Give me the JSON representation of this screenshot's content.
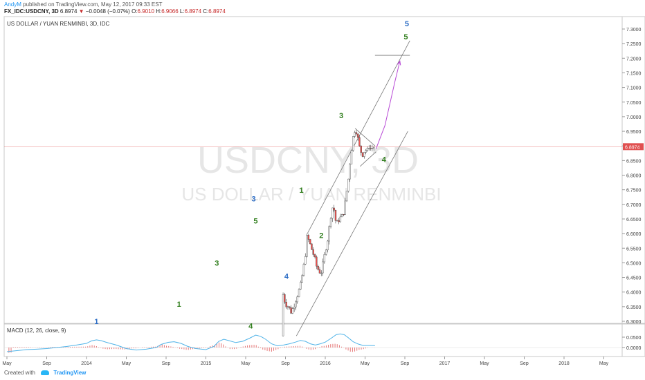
{
  "header": {
    "author": "AndyM",
    "published_text": "published on TradingView.com, May 12, 2017 09:33 EST",
    "symbol": "FX_IDC:USDCNY, 3D",
    "last": "6.8974",
    "change": "−0.0048 (−0.07%)",
    "o_label": "O:",
    "o": "6.9010",
    "h_label": "H:",
    "h": "6.9066",
    "l_label": "L:",
    "l": "6.8974",
    "c_label": "C:",
    "c": "6.8974"
  },
  "footer": {
    "created_with": "Created with",
    "brand": "TradingView"
  },
  "colors": {
    "up": "#26a69a",
    "down": "#ef5350",
    "candle_up_fill": "#ffffff",
    "candle_body": "#3c3c3c",
    "wave_green": "#2e7d1a",
    "wave_blue": "#2b6cc4",
    "projection": "#b84ad6",
    "macd_line": "#4fb3e8",
    "macd_hist": "#e57373",
    "price_line": "#e05050"
  },
  "chart_data": [
    {
      "type": "candlestick",
      "title": "US DOLLAR / YUAN RENMINBI, 3D, IDC",
      "watermark": "USDCNY, 3D",
      "watermark_sub": "US DOLLAR / YUAN RENMINBI",
      "x_ticks": [
        "May",
        "Sep",
        "2014",
        "May",
        "Sep",
        "2015",
        "May",
        "Sep",
        "2016",
        "May",
        "Sep",
        "2017",
        "May",
        "Sep",
        "2018",
        "May"
      ],
      "y_ticks": [
        "7.3000",
        "7.2500",
        "7.2000",
        "7.1500",
        "7.1000",
        "7.0500",
        "7.0000",
        "6.9500",
        "6.9000",
        "6.8500",
        "6.8000",
        "6.7500",
        "6.7000",
        "6.6500",
        "6.6000",
        "6.5500",
        "6.5000",
        "6.4500",
        "6.4000",
        "6.3500",
        "6.3000"
      ],
      "ylim": [
        6.29,
        7.32
      ],
      "last_price": 6.8974,
      "last_price_label": "6.8974",
      "price_path": [
        [
          27.6,
          6.25
        ],
        [
          27.7,
          6.4
        ],
        [
          27.85,
          6.38
        ],
        [
          28.0,
          6.36
        ],
        [
          28.3,
          6.35
        ],
        [
          28.6,
          6.33
        ],
        [
          28.9,
          6.36
        ],
        [
          29.2,
          6.39
        ],
        [
          29.5,
          6.42
        ],
        [
          29.8,
          6.48
        ],
        [
          30.0,
          6.53
        ],
        [
          30.1,
          6.59
        ],
        [
          30.3,
          6.58
        ],
        [
          30.6,
          6.55
        ],
        [
          30.9,
          6.52
        ],
        [
          31.1,
          6.49
        ],
        [
          31.4,
          6.47
        ],
        [
          31.6,
          6.47
        ],
        [
          31.8,
          6.5
        ],
        [
          32.0,
          6.54
        ],
        [
          32.3,
          6.59
        ],
        [
          32.5,
          6.65
        ],
        [
          32.7,
          6.69
        ],
        [
          32.9,
          6.68
        ],
        [
          33.1,
          6.63
        ],
        [
          33.4,
          6.65
        ],
        [
          33.7,
          6.66
        ],
        [
          33.9,
          6.68
        ],
        [
          34.1,
          6.73
        ],
        [
          34.3,
          6.78
        ],
        [
          34.5,
          6.85
        ],
        [
          34.7,
          6.91
        ],
        [
          34.9,
          6.95
        ],
        [
          35.05,
          6.96
        ],
        [
          35.2,
          6.94
        ],
        [
          35.4,
          6.9
        ],
        [
          35.6,
          6.88
        ],
        [
          35.8,
          6.87
        ],
        [
          36.0,
          6.89
        ],
        [
          36.2,
          6.88
        ],
        [
          36.4,
          6.9
        ],
        [
          36.6,
          6.89
        ],
        [
          36.8,
          6.895
        ],
        [
          37.0,
          6.8974
        ]
      ],
      "channel_upper": [
        [
          30.2,
          6.6
        ],
        [
          40.5,
          7.26
        ]
      ],
      "channel_lower": [
        [
          29.1,
          6.25
        ],
        [
          40.3,
          6.95
        ]
      ],
      "triangle_upper": [
        [
          35.0,
          6.96
        ],
        [
          37.0,
          6.9
        ]
      ],
      "triangle_lower": [
        [
          35.5,
          6.83
        ],
        [
          37.1,
          6.88
        ]
      ],
      "target_line": [
        [
          37.0,
          7.21
        ],
        [
          40.5,
          7.21
        ]
      ],
      "projection": [
        [
          37.1,
          6.89
        ],
        [
          38.0,
          6.97
        ],
        [
          39.0,
          7.12
        ],
        [
          39.5,
          7.19
        ]
      ],
      "wave_labels": [
        {
          "text": "1",
          "x": 9.0,
          "y": 6.29,
          "color": "blue"
        },
        {
          "text": "1",
          "x": 17.3,
          "y": 6.35,
          "color": "green"
        },
        {
          "text": "3",
          "x": 21.1,
          "y": 6.49,
          "color": "green"
        },
        {
          "text": "4",
          "x": 24.5,
          "y": 6.275,
          "color": "green"
        },
        {
          "text": "3",
          "x": 24.8,
          "y": 6.71,
          "color": "blue"
        },
        {
          "text": "5",
          "x": 25.0,
          "y": 6.635,
          "color": "green"
        },
        {
          "text": "4",
          "x": 28.1,
          "y": 6.445,
          "color": "blue"
        },
        {
          "text": "1",
          "x": 29.6,
          "y": 6.74,
          "color": "green"
        },
        {
          "text": "2",
          "x": 31.6,
          "y": 6.585,
          "color": "green"
        },
        {
          "text": "3",
          "x": 33.6,
          "y": 6.995,
          "color": "green"
        },
        {
          "text": "4",
          "x": 37.9,
          "y": 6.845,
          "color": "green"
        },
        {
          "text": "5",
          "x": 40.1,
          "y": 7.265,
          "color": "green"
        },
        {
          "text": "5",
          "x": 40.2,
          "y": 7.31,
          "color": "blue"
        }
      ]
    },
    {
      "type": "line",
      "title": "MACD (12, 26, close, 9)",
      "y_ticks": [
        "0.0500",
        "0.0000"
      ],
      "ylim": [
        -0.03,
        0.07
      ],
      "macd": [
        [
          0,
          -0.02
        ],
        [
          1,
          -0.015
        ],
        [
          2,
          -0.01
        ],
        [
          3,
          -0.008
        ],
        [
          4,
          -0.005
        ],
        [
          5,
          0.0
        ],
        [
          6,
          0.005
        ],
        [
          7,
          0.012
        ],
        [
          8,
          0.02
        ],
        [
          8.5,
          0.032
        ],
        [
          9.0,
          0.037
        ],
        [
          9.5,
          0.033
        ],
        [
          10.0,
          0.025
        ],
        [
          11.0,
          0.012
        ],
        [
          12.0,
          -0.005
        ],
        [
          13.0,
          -0.012
        ],
        [
          14.0,
          -0.008
        ],
        [
          15.0,
          0.0
        ],
        [
          15.5,
          0.015
        ],
        [
          16.2,
          0.025
        ],
        [
          16.8,
          0.028
        ],
        [
          17.5,
          0.02
        ],
        [
          18.2,
          0.005
        ],
        [
          19.0,
          -0.005
        ],
        [
          20.0,
          -0.01
        ],
        [
          20.8,
          0.005
        ],
        [
          21.3,
          0.03
        ],
        [
          21.8,
          0.04
        ],
        [
          22.4,
          0.032
        ],
        [
          23.0,
          0.024
        ],
        [
          23.7,
          0.03
        ],
        [
          24.4,
          0.045
        ],
        [
          25.0,
          0.06
        ],
        [
          25.5,
          0.054
        ],
        [
          26.0,
          0.04
        ],
        [
          26.6,
          0.018
        ],
        [
          27.2,
          0.008
        ],
        [
          27.8,
          0.012
        ],
        [
          28.4,
          0.018
        ],
        [
          29.0,
          0.026
        ],
        [
          29.5,
          0.034
        ],
        [
          30.0,
          0.03
        ],
        [
          30.5,
          0.018
        ],
        [
          31.0,
          0.012
        ],
        [
          31.5,
          0.018
        ],
        [
          32.0,
          0.026
        ],
        [
          32.6,
          0.045
        ],
        [
          33.1,
          0.062
        ],
        [
          33.5,
          0.066
        ],
        [
          33.9,
          0.062
        ],
        [
          34.3,
          0.048
        ],
        [
          34.8,
          0.028
        ],
        [
          35.3,
          0.017
        ],
        [
          35.8,
          0.01
        ],
        [
          36.3,
          0.01
        ],
        [
          37.0,
          0.009
        ]
      ]
    }
  ]
}
